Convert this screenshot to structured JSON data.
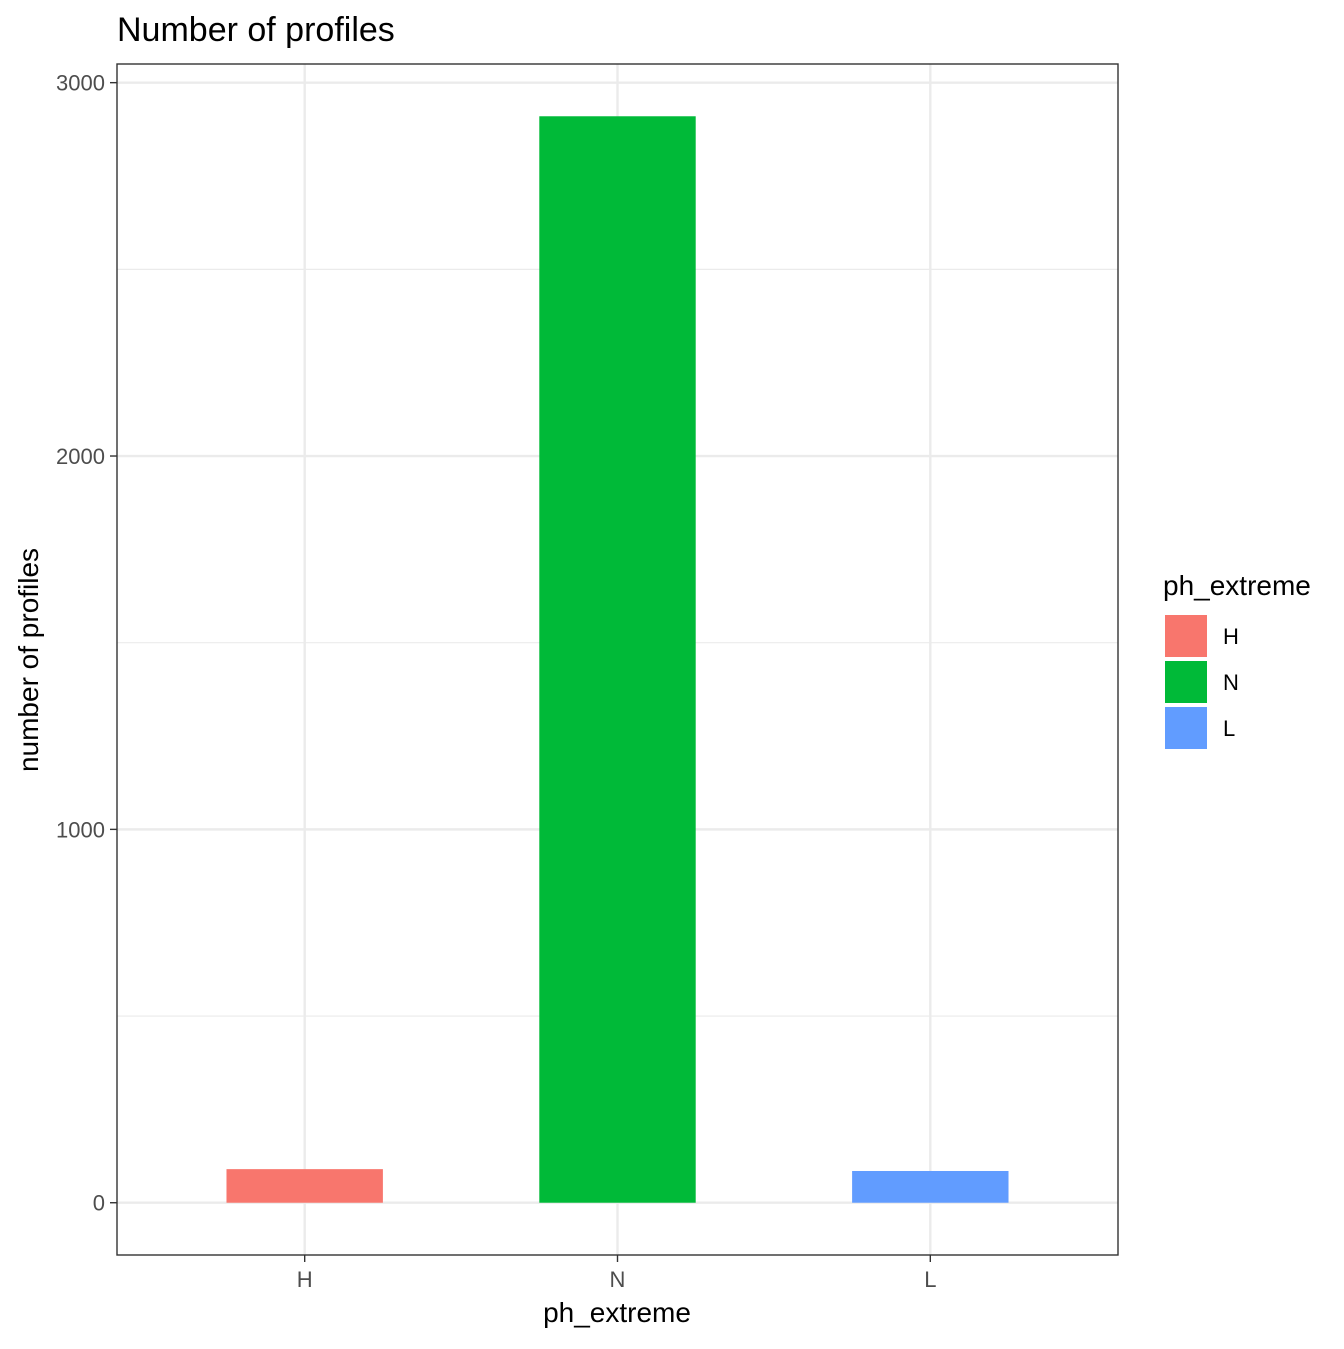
{
  "chart_data": {
    "type": "bar",
    "title": "Number of profiles",
    "xlabel": "ph_extreme",
    "ylabel": "number of profiles",
    "categories": [
      "H",
      "N",
      "L"
    ],
    "values": [
      90,
      2910,
      85
    ],
    "colors": [
      "#F8766D",
      "#00BA38",
      "#619CFF"
    ],
    "ylim": [
      -140,
      3050
    ],
    "yticks": [
      0,
      1000,
      2000,
      3000
    ],
    "y_minor_ticks": [
      500,
      1500,
      2500
    ],
    "grid": true,
    "legend": {
      "title": "ph_extreme",
      "position": "right",
      "entries": [
        "H",
        "N",
        "L"
      ]
    }
  }
}
